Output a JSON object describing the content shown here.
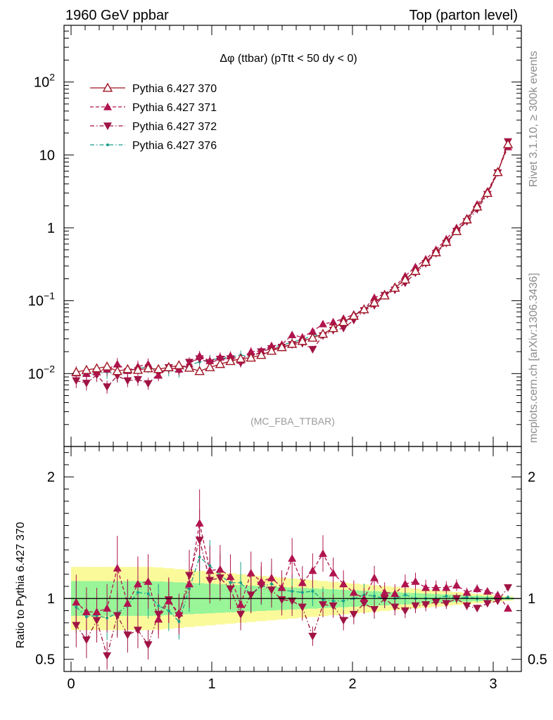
{
  "header": {
    "left": "1960 GeV ppbar",
    "right": "Top (parton level)"
  },
  "side_labels": {
    "rivet": "Rivet 3.1.10, ≥ 300k events",
    "mcplots": "mcplots.cern.ch [arXiv:1306.3436]"
  },
  "chart_data": {
    "type": "line",
    "title": "Δφ (ttbar) (pTtt < 50 dy < 0)",
    "analysis": "(MC_FBA_TTBAR)",
    "xlim": [
      -0.05,
      3.2
    ],
    "x_ticks": [
      0,
      1,
      2,
      3
    ],
    "x_tick_labels": [
      "0",
      "1",
      "2",
      "3"
    ],
    "main": {
      "yscale": "log",
      "ylim": [
        0.001,
        600
      ],
      "y_tick_labels": [
        {
          "v": 0.01,
          "base": "10",
          "exp": "−2"
        },
        {
          "v": 0.1,
          "base": "10",
          "exp": "−1"
        },
        {
          "v": 1,
          "text": "1"
        },
        {
          "v": 10,
          "text": "10"
        },
        {
          "v": 100,
          "base": "10",
          "exp": "2"
        }
      ]
    },
    "ratio": {
      "ylabel": "Ratio to Pythia 6.427 370",
      "ylim": [
        0.4,
        2.25
      ],
      "y_tick_labels": [
        "0.5",
        "1",
        "2"
      ],
      "y_tick_values": [
        0.5,
        1,
        2
      ]
    },
    "legend_position": "top-left",
    "series": [
      {
        "name": "Pythia 6.427 370",
        "color": "#a01423",
        "marker": "triangle-open",
        "line": "solid",
        "values": [
          0.0105,
          0.0112,
          0.0118,
          0.0125,
          0.0108,
          0.0115,
          0.0112,
          0.0118,
          0.0115,
          0.0122,
          0.013,
          0.012,
          0.0108,
          0.0122,
          0.0135,
          0.0148,
          0.016,
          0.0165,
          0.018,
          0.0205,
          0.023,
          0.0255,
          0.028,
          0.031,
          0.035,
          0.042,
          0.051,
          0.062,
          0.076,
          0.094,
          0.118,
          0.15,
          0.195,
          0.255,
          0.34,
          0.46,
          0.64,
          0.9,
          1.3,
          1.95,
          3.0,
          5.8,
          14.0
        ],
        "ratio": [
          1,
          1,
          1,
          1,
          1,
          1,
          1,
          1,
          1,
          1,
          1,
          1,
          1,
          1,
          1,
          1,
          1,
          1,
          1,
          1,
          1,
          1,
          1,
          1,
          1,
          1,
          1,
          1,
          1,
          1,
          1,
          1,
          1,
          1,
          1,
          1,
          1,
          1,
          1,
          1,
          1,
          1,
          1
        ]
      },
      {
        "name": "Pythia 6.427 371",
        "color": "#b0144e",
        "marker": "triangle-up",
        "line": "dashed",
        "values": [
          0.0102,
          0.01,
          0.0105,
          0.0115,
          0.0135,
          0.011,
          0.0125,
          0.0135,
          0.0095,
          0.012,
          0.0115,
          0.0135,
          0.0175,
          0.015,
          0.0168,
          0.0175,
          0.0152,
          0.02,
          0.0205,
          0.024,
          0.025,
          0.034,
          0.0315,
          0.038,
          0.048,
          0.051,
          0.057,
          0.065,
          0.076,
          0.11,
          0.124,
          0.156,
          0.218,
          0.29,
          0.371,
          0.501,
          0.7,
          1.0,
          1.36,
          2.1,
          3.17,
          5.95,
          12.9
        ],
        "ratio": [
          0.97,
          0.89,
          0.89,
          0.92,
          1.25,
          0.96,
          1.12,
          1.14,
          0.83,
          0.98,
          0.88,
          1.12,
          1.62,
          1.23,
          1.24,
          1.18,
          0.95,
          1.21,
          1.14,
          1.17,
          1.09,
          1.33,
          1.13,
          1.23,
          1.37,
          1.21,
          1.12,
          1.05,
          1.0,
          1.17,
          1.05,
          1.04,
          1.12,
          1.14,
          1.09,
          1.09,
          1.09,
          1.11,
          1.05,
          1.08,
          1.06,
          1.03,
          0.92
        ]
      },
      {
        "name": "Pythia 6.427 372",
        "color": "#a01445",
        "marker": "triangle-down",
        "line": "dashdot",
        "values": [
          0.008,
          0.0074,
          0.0096,
          0.0066,
          0.0093,
          0.008,
          0.0083,
          0.0073,
          0.01,
          0.0121,
          0.0112,
          0.0143,
          0.016,
          0.014,
          0.0158,
          0.016,
          0.014,
          0.017,
          0.02,
          0.022,
          0.023,
          0.025,
          0.026,
          0.0215,
          0.0331,
          0.0393,
          0.042,
          0.054,
          0.073,
          0.086,
          0.118,
          0.14,
          0.175,
          0.24,
          0.324,
          0.446,
          0.613,
          0.9,
          1.22,
          1.79,
          2.88,
          5.7,
          15.2
        ],
        "ratio": [
          0.78,
          0.66,
          0.82,
          0.53,
          0.86,
          0.7,
          0.74,
          0.62,
          0.87,
          0.99,
          0.86,
          1.19,
          1.48,
          1.15,
          1.17,
          1.08,
          0.87,
          1.03,
          1.11,
          1.07,
          0.99,
          0.98,
          0.93,
          0.69,
          0.95,
          0.94,
          0.82,
          0.87,
          0.96,
          0.91,
          1.0,
          0.93,
          0.9,
          0.94,
          0.95,
          0.97,
          0.96,
          1.0,
          0.94,
          0.92,
          0.96,
          0.98,
          1.09
        ]
      },
      {
        "name": "Pythia 6.427 376",
        "color": "#1a9e8a",
        "marker": "dot",
        "line": "dashdot",
        "values": [
          0.0098,
          0.0095,
          0.0101,
          0.0105,
          0.0095,
          0.0108,
          0.0118,
          0.0123,
          0.0108,
          0.011,
          0.0105,
          0.013,
          0.0145,
          0.0155,
          0.016,
          0.0168,
          0.018,
          0.017,
          0.0198,
          0.023,
          0.0245,
          0.027,
          0.0295,
          0.033,
          0.0345,
          0.041,
          0.0498,
          0.062,
          0.0785,
          0.0955,
          0.118,
          0.15,
          0.2,
          0.255,
          0.34,
          0.46,
          0.65,
          0.9,
          1.31,
          1.95,
          3.0,
          5.8,
          14.1
        ],
        "ratio": [
          0.93,
          0.85,
          0.86,
          0.84,
          0.88,
          0.94,
          1.05,
          1.04,
          0.94,
          0.9,
          0.81,
          1.08,
          1.34,
          1.27,
          1.19,
          1.13,
          1.13,
          1.03,
          1.1,
          1.12,
          1.07,
          1.06,
          1.05,
          1.06,
          0.99,
          0.98,
          0.98,
          1.0,
          1.03,
          1.02,
          1.0,
          1.0,
          1.03,
          1.0,
          1.0,
          1.0,
          1.02,
          1.0,
          1.01,
          1.0,
          1.0,
          1.0,
          1.01
        ]
      }
    ]
  }
}
